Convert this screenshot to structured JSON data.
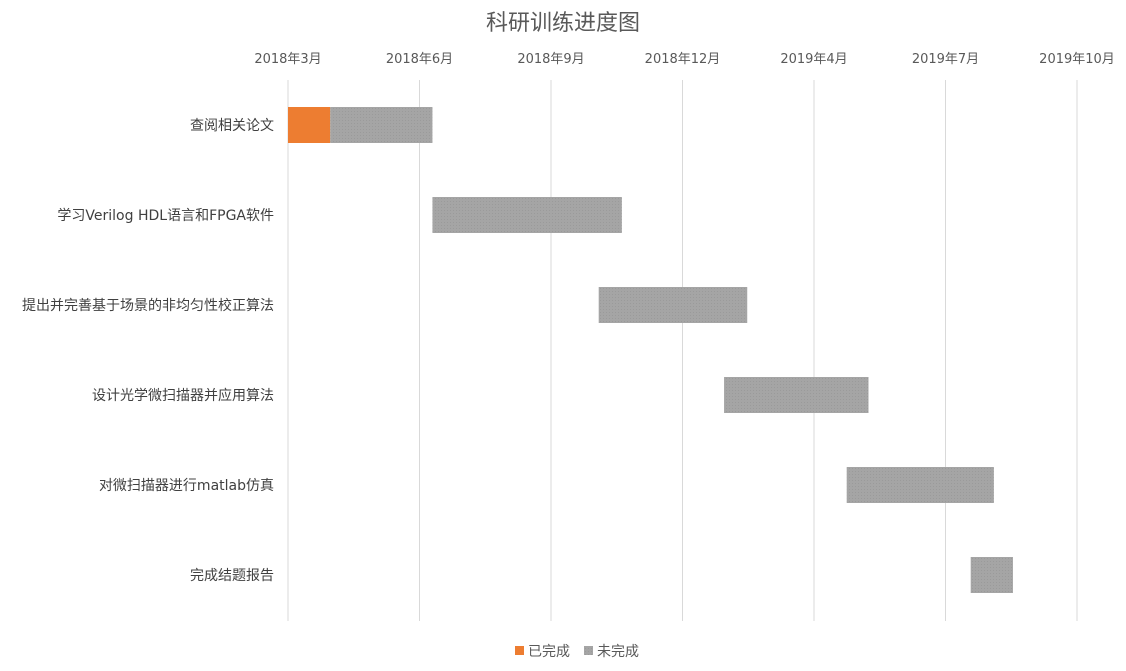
{
  "chart_data": {
    "type": "gantt",
    "title": "科研训练进度图",
    "xaxis_position": "top",
    "x_ticks": [
      "2018年3月",
      "2018年6月",
      "2018年9月",
      "2018年12月",
      "2019年4月",
      "2019年7月",
      "2019年10月"
    ],
    "xlim": [
      "2018-03",
      "2019-10"
    ],
    "grid": true,
    "legend": {
      "position": "bottom",
      "entries": [
        "已完成",
        "未完成"
      ]
    },
    "colors": {
      "done": "#ED7D31",
      "todo": "#A5A5A5"
    },
    "tasks": [
      {
        "name": "查阅相关论文",
        "start": "2018-03",
        "done_end": "2018-04",
        "end": "2018-06-15"
      },
      {
        "name": "学习Verilog HDL语言和FPGA软件",
        "start": "2018-06-15",
        "done_end": "2018-06-15",
        "end": "2018-11-01"
      },
      {
        "name": "提出并完善基于场景的非均匀性校正算法",
        "start": "2018-10-15",
        "done_end": "2018-10-15",
        "end": "2019-02-01"
      },
      {
        "name": "设计光学微扫描器并应用算法",
        "start": "2019-01-15",
        "done_end": "2019-01-15",
        "end": "2019-05-01"
      },
      {
        "name": "对微扫描器进行matlab仿真",
        "start": "2019-04-15",
        "done_end": "2019-04-15",
        "end": "2019-08-01"
      },
      {
        "name": "完成结题报告",
        "start": "2019-07-15",
        "done_end": "2019-07-15",
        "end": "2019-08-15"
      }
    ]
  }
}
